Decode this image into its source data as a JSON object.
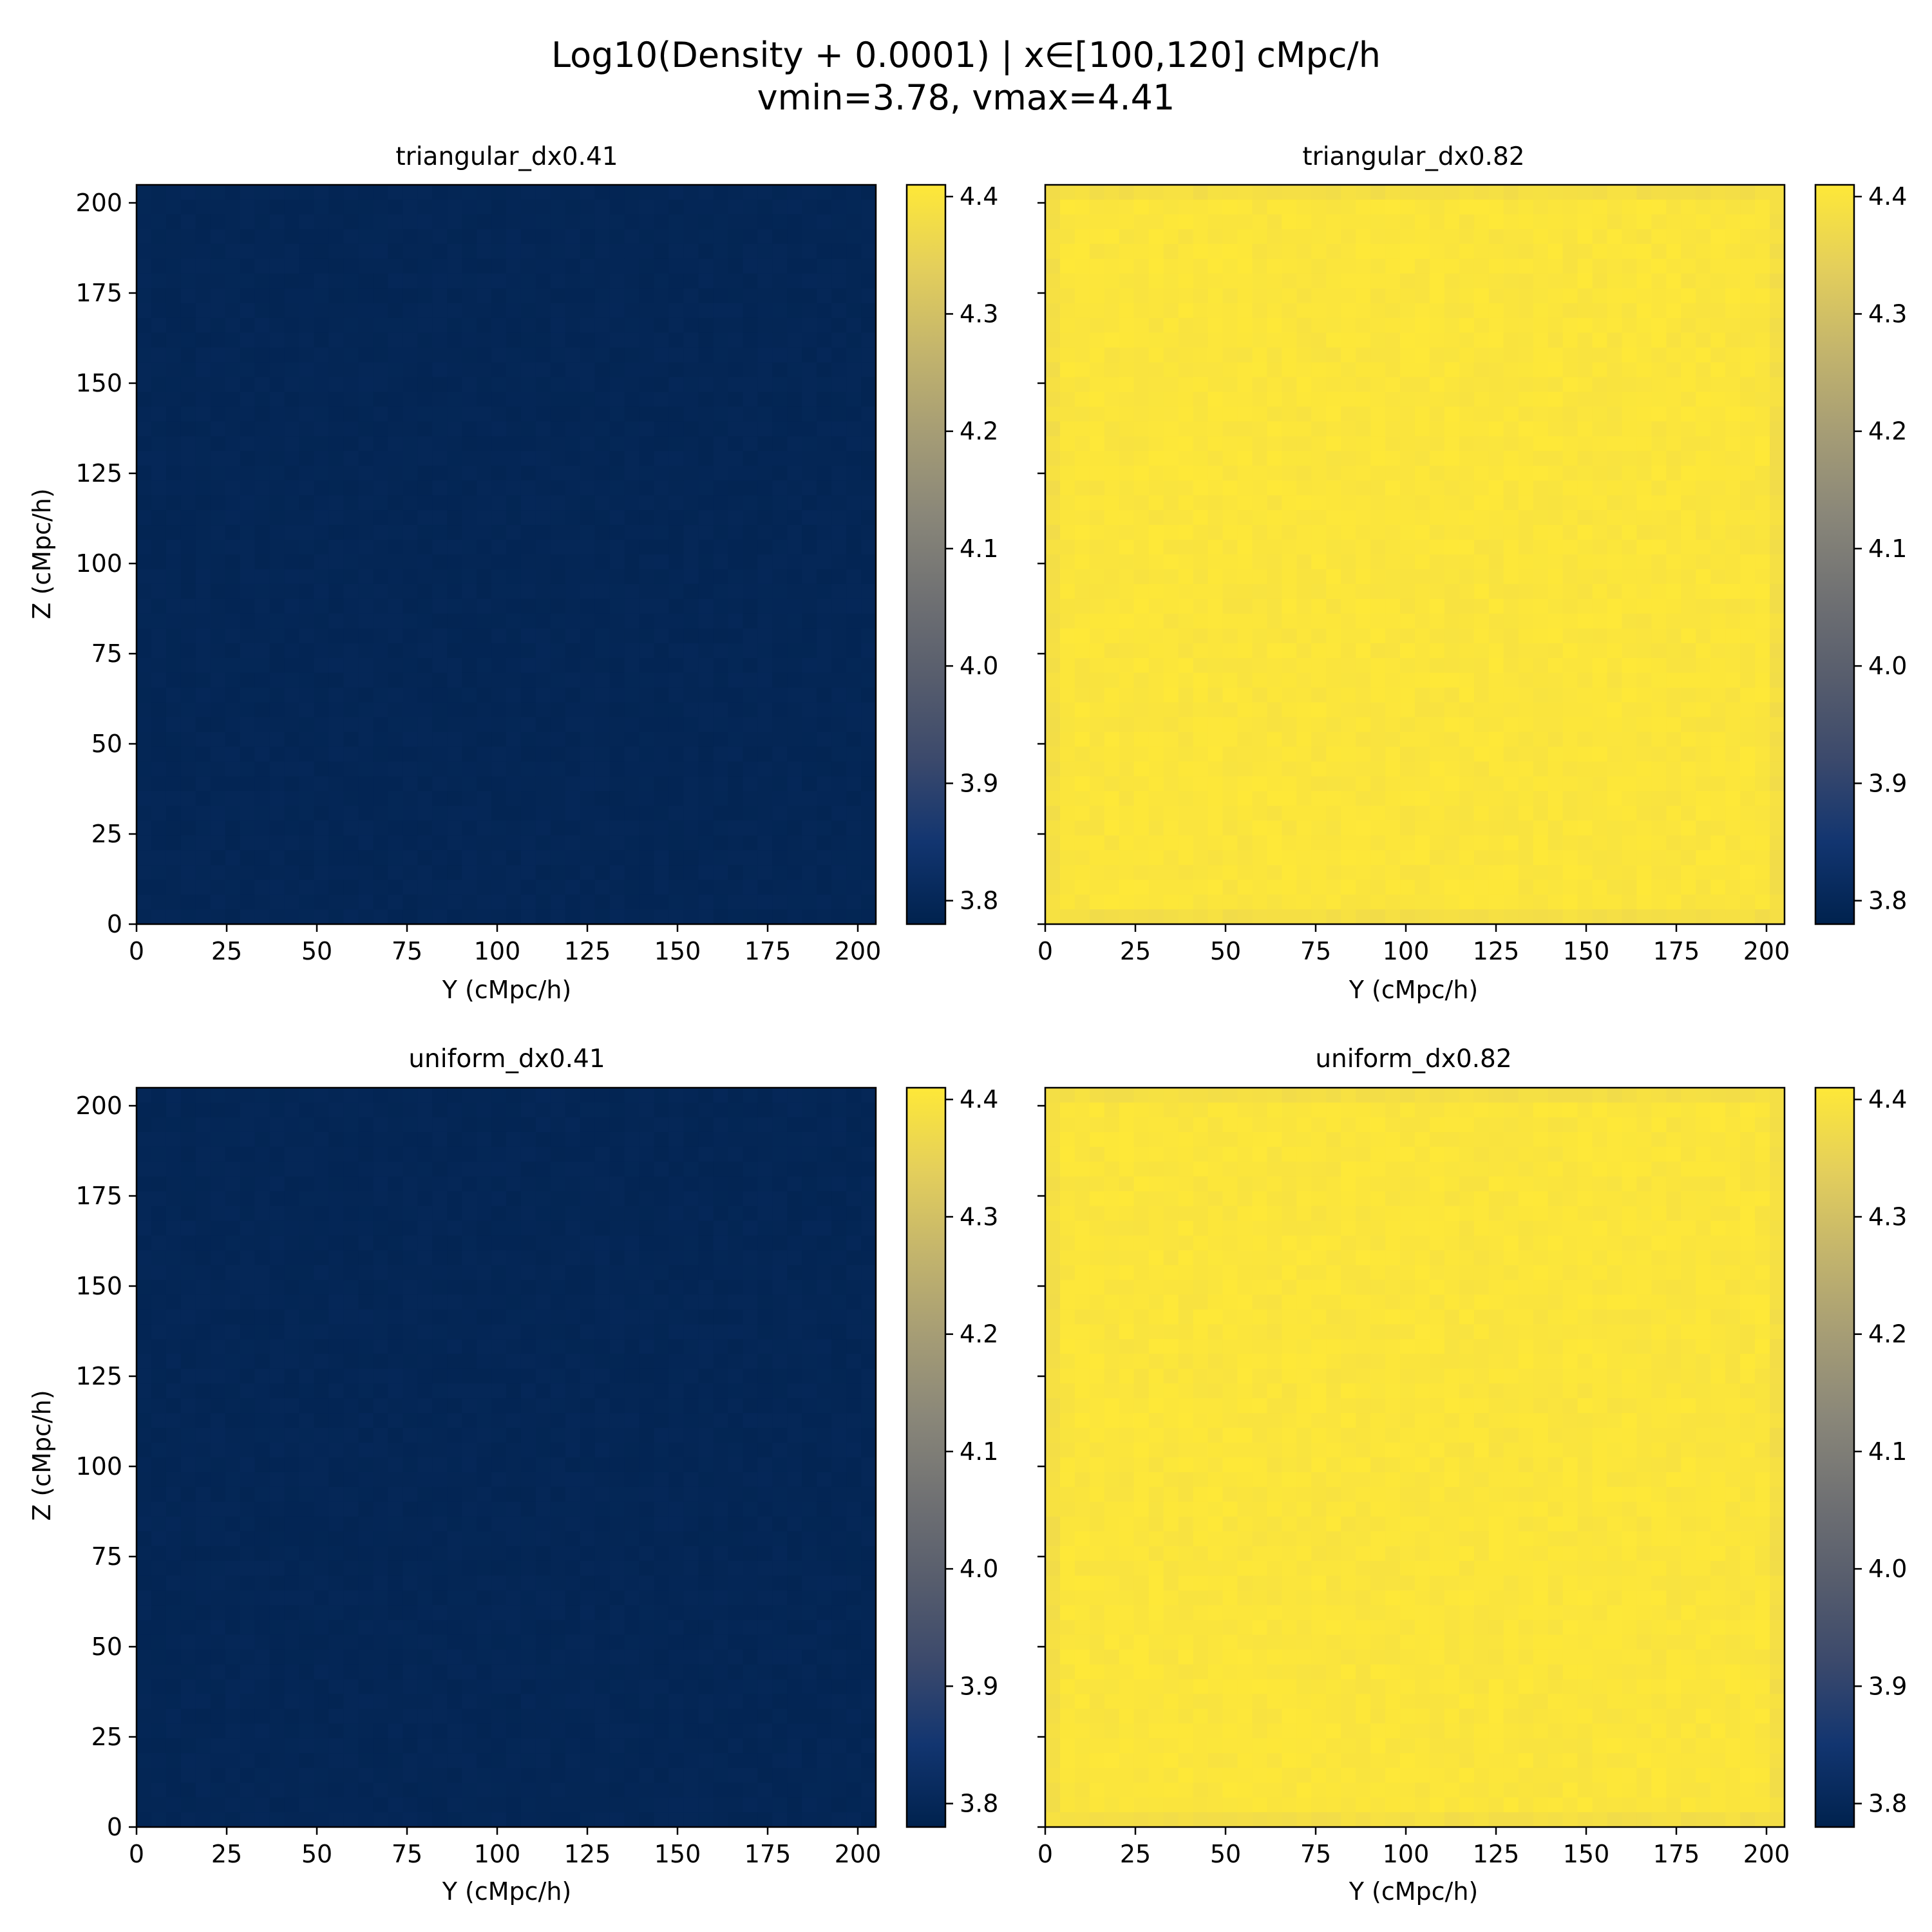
{
  "figure": {
    "title_line1": "Log10(Density + 0.0001) | x∈[100,120] cMpc/h",
    "title_line2": "vmin=3.78, vmax=4.41"
  },
  "colormap": {
    "name": "cividis",
    "stops": [
      "#00224e",
      "#123570",
      "#3b496c",
      "#575d6d",
      "#707173",
      "#8a8779",
      "#a69d75",
      "#c4b56c",
      "#e4cf5b",
      "#fee838"
    ]
  },
  "chart_data": [
    {
      "type": "heatmap",
      "title": "triangular_dx0.41",
      "xlabel": "Y (cMpc/h)",
      "ylabel": "Z (cMpc/h)",
      "xlim": [
        0,
        205
      ],
      "ylim": [
        0,
        205
      ],
      "xticks": [
        0,
        25,
        50,
        75,
        100,
        125,
        150,
        175,
        200
      ],
      "yticks": [
        0,
        25,
        50,
        75,
        100,
        125,
        150,
        175,
        200
      ],
      "show_ytick_labels": true,
      "value_approx": 3.79,
      "value_range": [
        3.785,
        3.8
      ],
      "edge_darkening": false,
      "colorbar": {
        "vmin": 3.78,
        "vmax": 4.41,
        "ticks": [
          "3.8",
          "3.9",
          "4.0",
          "4.1",
          "4.2",
          "4.3",
          "4.4"
        ]
      }
    },
    {
      "type": "heatmap",
      "title": "triangular_dx0.82",
      "xlabel": "Y (cMpc/h)",
      "ylabel": "",
      "xlim": [
        0,
        205
      ],
      "ylim": [
        0,
        205
      ],
      "xticks": [
        0,
        25,
        50,
        75,
        100,
        125,
        150,
        175,
        200
      ],
      "yticks": [
        0,
        25,
        50,
        75,
        100,
        125,
        150,
        175,
        200
      ],
      "show_ytick_labels": false,
      "value_approx": 4.4,
      "value_range": [
        4.385,
        4.41
      ],
      "edge_darkening": true,
      "colorbar": {
        "vmin": 3.78,
        "vmax": 4.41,
        "ticks": [
          "3.8",
          "3.9",
          "4.0",
          "4.1",
          "4.2",
          "4.3",
          "4.4"
        ]
      }
    },
    {
      "type": "heatmap",
      "title": "uniform_dx0.41",
      "xlabel": "Y (cMpc/h)",
      "ylabel": "Z (cMpc/h)",
      "xlim": [
        0,
        205
      ],
      "ylim": [
        0,
        205
      ],
      "xticks": [
        0,
        25,
        50,
        75,
        100,
        125,
        150,
        175,
        200
      ],
      "yticks": [
        0,
        25,
        50,
        75,
        100,
        125,
        150,
        175,
        200
      ],
      "show_ytick_labels": true,
      "value_approx": 3.79,
      "value_range": [
        3.785,
        3.8
      ],
      "edge_darkening": false,
      "colorbar": {
        "vmin": 3.78,
        "vmax": 4.41,
        "ticks": [
          "3.8",
          "3.9",
          "4.0",
          "4.1",
          "4.2",
          "4.3",
          "4.4"
        ]
      }
    },
    {
      "type": "heatmap",
      "title": "uniform_dx0.82",
      "xlabel": "Y (cMpc/h)",
      "ylabel": "",
      "xlim": [
        0,
        205
      ],
      "ylim": [
        0,
        205
      ],
      "xticks": [
        0,
        25,
        50,
        75,
        100,
        125,
        150,
        175,
        200
      ],
      "yticks": [
        0,
        25,
        50,
        75,
        100,
        125,
        150,
        175,
        200
      ],
      "show_ytick_labels": false,
      "value_approx": 4.4,
      "value_range": [
        4.385,
        4.41
      ],
      "edge_darkening": true,
      "colorbar": {
        "vmin": 3.78,
        "vmax": 4.41,
        "ticks": [
          "3.8",
          "3.9",
          "4.0",
          "4.1",
          "4.2",
          "4.3",
          "4.4"
        ]
      }
    }
  ]
}
